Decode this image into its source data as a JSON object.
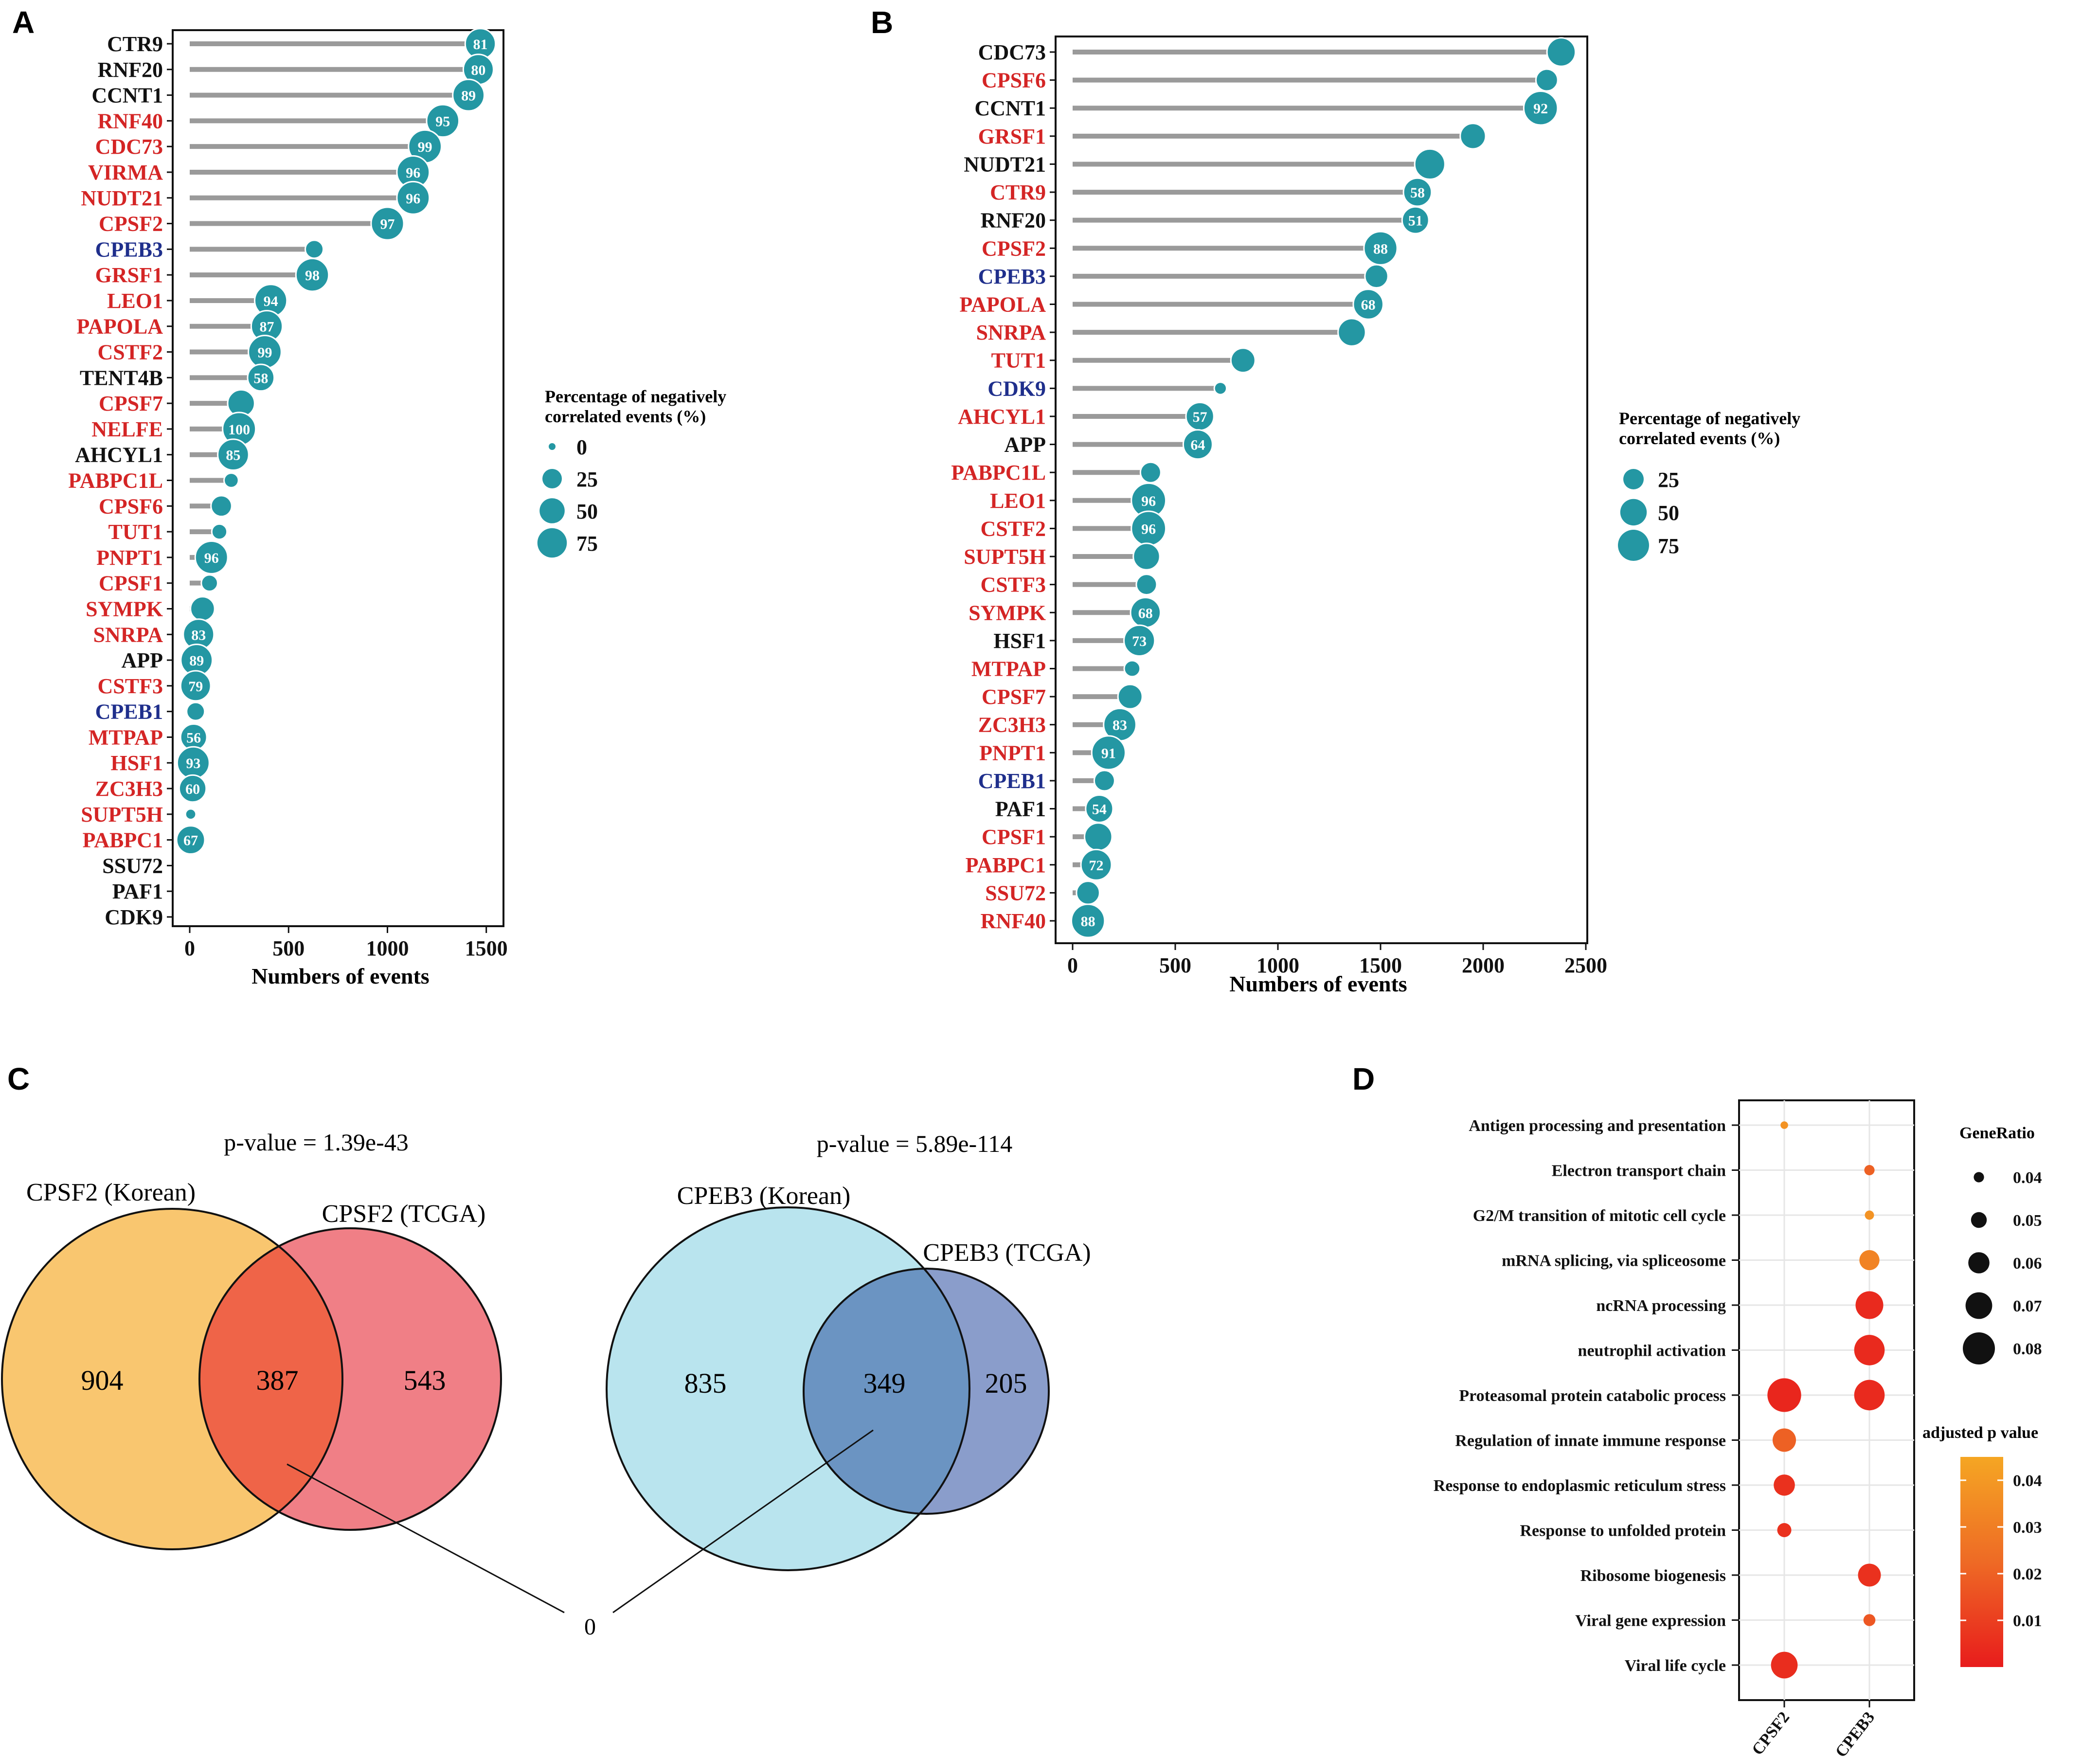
{
  "colors": {
    "red": "#d42525",
    "blue": "#1f2f8c",
    "black": "#111111",
    "teal": "#2497a3",
    "stem": "#9a9a9a",
    "venn_orange": "#f9c66f",
    "venn_pink": "#f07f86",
    "venn_overlap_red": "#ef6448",
    "venn_light_blue": "#b9e4ee",
    "venn_mid_blue": "#8a9dcb",
    "venn_overlap_blue": "#6b94c2",
    "grad_top": "#f5a623",
    "grad_mid": "#ee6a25",
    "grad_bottom": "#e81c1c"
  },
  "chart_data": [
    {
      "panel": "A",
      "type": "lollipop",
      "xlabel": "Numbers of events",
      "xlim": [
        0,
        1550
      ],
      "xticks": [
        0,
        500,
        1000,
        1500
      ],
      "legend_title": "Percentage of negatively correlated events (%)",
      "legend_title_lines": [
        "Percentage of negatively",
        "correlated events (%)"
      ],
      "legend_labels": [
        "0",
        "25",
        "50",
        "75"
      ],
      "legend_values": [
        0,
        25,
        50,
        75
      ],
      "genes": [
        {
          "name": "CTR9",
          "color": "black",
          "value": 1470,
          "pct": 81,
          "label": "81"
        },
        {
          "name": "RNF20",
          "color": "black",
          "value": 1460,
          "pct": 80,
          "label": "80"
        },
        {
          "name": "CCNT1",
          "color": "black",
          "value": 1410,
          "pct": 89,
          "label": "89"
        },
        {
          "name": "RNF40",
          "color": "red",
          "value": 1280,
          "pct": 95,
          "label": "95"
        },
        {
          "name": "CDC73",
          "color": "red",
          "value": 1190,
          "pct": 99,
          "label": "99"
        },
        {
          "name": "VIRMA",
          "color": "red",
          "value": 1130,
          "pct": 96,
          "label": "96"
        },
        {
          "name": "NUDT21",
          "color": "red",
          "value": 1130,
          "pct": 96,
          "label": "96"
        },
        {
          "name": "CPSF2",
          "color": "red",
          "value": 1000,
          "pct": 97,
          "label": "97"
        },
        {
          "name": "CPEB3",
          "color": "blue",
          "value": 630,
          "pct": 20,
          "label": ""
        },
        {
          "name": "GRSF1",
          "color": "red",
          "value": 620,
          "pct": 98,
          "label": "98"
        },
        {
          "name": "LEO1",
          "color": "red",
          "value": 410,
          "pct": 94,
          "label": "94"
        },
        {
          "name": "PAPOLA",
          "color": "red",
          "value": 390,
          "pct": 87,
          "label": "87"
        },
        {
          "name": "CSTF2",
          "color": "red",
          "value": 380,
          "pct": 99,
          "label": "99"
        },
        {
          "name": "TENT4B",
          "color": "black",
          "value": 360,
          "pct": 58,
          "label": "58"
        },
        {
          "name": "CPSF7",
          "color": "red",
          "value": 260,
          "pct": 60,
          "label": ""
        },
        {
          "name": "NELFE",
          "color": "red",
          "value": 250,
          "pct": 100,
          "label": "100"
        },
        {
          "name": "AHCYL1",
          "color": "black",
          "value": 220,
          "pct": 85,
          "label": "85"
        },
        {
          "name": "PABPC1L",
          "color": "red",
          "value": 210,
          "pct": 10,
          "label": ""
        },
        {
          "name": "CPSF6",
          "color": "red",
          "value": 160,
          "pct": 30,
          "label": ""
        },
        {
          "name": "TUT1",
          "color": "red",
          "value": 150,
          "pct": 12,
          "label": ""
        },
        {
          "name": "PNPT1",
          "color": "red",
          "value": 110,
          "pct": 96,
          "label": "96"
        },
        {
          "name": "CPSF1",
          "color": "red",
          "value": 100,
          "pct": 15,
          "label": ""
        },
        {
          "name": "SYMPK",
          "color": "red",
          "value": 65,
          "pct": 45,
          "label": ""
        },
        {
          "name": "SNRPA",
          "color": "red",
          "value": 45,
          "pct": 83,
          "label": "83"
        },
        {
          "name": "APP",
          "color": "black",
          "value": 35,
          "pct": 89,
          "label": "89"
        },
        {
          "name": "CSTF3",
          "color": "red",
          "value": 30,
          "pct": 79,
          "label": "79"
        },
        {
          "name": "CPEB1",
          "color": "blue",
          "value": 30,
          "pct": 20,
          "label": ""
        },
        {
          "name": "MTPAP",
          "color": "red",
          "value": 20,
          "pct": 56,
          "label": "56"
        },
        {
          "name": "HSF1",
          "color": "red",
          "value": 18,
          "pct": 93,
          "label": "93"
        },
        {
          "name": "ZC3H3",
          "color": "red",
          "value": 15,
          "pct": 60,
          "label": "60"
        },
        {
          "name": "SUPT5H",
          "color": "red",
          "value": 5,
          "pct": 3,
          "label": ""
        },
        {
          "name": "PABPC1",
          "color": "red",
          "value": 5,
          "pct": 67,
          "label": "67"
        },
        {
          "name": "SSU72",
          "color": "black",
          "value": 0,
          "pct": null,
          "label": ""
        },
        {
          "name": "PAF1",
          "color": "black",
          "value": 0,
          "pct": null,
          "label": ""
        },
        {
          "name": "CDK9",
          "color": "black",
          "value": 0,
          "pct": null,
          "label": ""
        }
      ]
    },
    {
      "panel": "B",
      "type": "lollipop",
      "xlabel": "Numbers of events",
      "xlim": [
        0,
        2500
      ],
      "xticks": [
        0,
        500,
        1000,
        1500,
        2000,
        2500
      ],
      "legend_title": "Percentage of negatively correlated events (%)",
      "legend_title_lines": [
        "Percentage of negatively",
        "correlated events (%)"
      ],
      "legend_labels": [
        "25",
        "50",
        "75"
      ],
      "legend_values": [
        25,
        50,
        75
      ],
      "genes": [
        {
          "name": "CDC73",
          "color": "black",
          "value": 2380,
          "pct": 60,
          "label": ""
        },
        {
          "name": "CPSF6",
          "color": "red",
          "value": 2310,
          "pct": 30,
          "label": ""
        },
        {
          "name": "CCNT1",
          "color": "black",
          "value": 2280,
          "pct": 92,
          "label": "92"
        },
        {
          "name": "GRSF1",
          "color": "red",
          "value": 1950,
          "pct": 45,
          "label": ""
        },
        {
          "name": "NUDT21",
          "color": "black",
          "value": 1740,
          "pct": 70,
          "label": ""
        },
        {
          "name": "CTR9",
          "color": "red",
          "value": 1680,
          "pct": 58,
          "label": "58"
        },
        {
          "name": "RNF20",
          "color": "black",
          "value": 1670,
          "pct": 51,
          "label": "51"
        },
        {
          "name": "CPSF2",
          "color": "red",
          "value": 1500,
          "pct": 88,
          "label": "88"
        },
        {
          "name": "CPEB3",
          "color": "blue",
          "value": 1480,
          "pct": 35,
          "label": ""
        },
        {
          "name": "PAPOLA",
          "color": "red",
          "value": 1440,
          "pct": 68,
          "label": "68"
        },
        {
          "name": "SNRPA",
          "color": "red",
          "value": 1360,
          "pct": 55,
          "label": ""
        },
        {
          "name": "TUT1",
          "color": "red",
          "value": 830,
          "pct": 40,
          "label": ""
        },
        {
          "name": "CDK9",
          "color": "blue",
          "value": 720,
          "pct": 5,
          "label": ""
        },
        {
          "name": "AHCYL1",
          "color": "red",
          "value": 620,
          "pct": 57,
          "label": "57"
        },
        {
          "name": "APP",
          "color": "black",
          "value": 610,
          "pct": 64,
          "label": "64"
        },
        {
          "name": "PABPC1L",
          "color": "red",
          "value": 380,
          "pct": 25,
          "label": ""
        },
        {
          "name": "LEO1",
          "color": "red",
          "value": 370,
          "pct": 96,
          "label": "96"
        },
        {
          "name": "CSTF2",
          "color": "red",
          "value": 370,
          "pct": 96,
          "label": "96"
        },
        {
          "name": "SUPT5H",
          "color": "red",
          "value": 360,
          "pct": 50,
          "label": ""
        },
        {
          "name": "CSTF3",
          "color": "red",
          "value": 360,
          "pct": 25,
          "label": ""
        },
        {
          "name": "SYMPK",
          "color": "red",
          "value": 355,
          "pct": 68,
          "label": "68"
        },
        {
          "name": "HSF1",
          "color": "black",
          "value": 325,
          "pct": 73,
          "label": "73"
        },
        {
          "name": "MTPAP",
          "color": "red",
          "value": 290,
          "pct": 12,
          "label": ""
        },
        {
          "name": "CPSF7",
          "color": "red",
          "value": 280,
          "pct": 40,
          "label": ""
        },
        {
          "name": "ZC3H3",
          "color": "red",
          "value": 230,
          "pct": 83,
          "label": "83"
        },
        {
          "name": "PNPT1",
          "color": "red",
          "value": 175,
          "pct": 91,
          "label": "91"
        },
        {
          "name": "CPEB1",
          "color": "blue",
          "value": 155,
          "pct": 25,
          "label": ""
        },
        {
          "name": "PAF1",
          "color": "black",
          "value": 130,
          "pct": 54,
          "label": "54"
        },
        {
          "name": "CPSF1",
          "color": "red",
          "value": 125,
          "pct": 55,
          "label": ""
        },
        {
          "name": "PABPC1",
          "color": "red",
          "value": 115,
          "pct": 72,
          "label": "72"
        },
        {
          "name": "SSU72",
          "color": "red",
          "value": 75,
          "pct": 35,
          "label": ""
        },
        {
          "name": "RNF40",
          "color": "red",
          "value": 75,
          "pct": 88,
          "label": "88"
        }
      ]
    },
    {
      "panel": "C",
      "type": "venn",
      "sets": [
        {
          "title": "CPSF2 (Korean) vs CPSF2 (TCGA)",
          "left_label": "CPSF2 (Korean)",
          "right_label": "CPSF2 (TCGA)",
          "p_value": "p-value = 1.39e-43",
          "left_only": "904",
          "overlap": "387",
          "right_only": "543"
        },
        {
          "title": "CPEB3 (Korean) vs CPEB3 (TCGA)",
          "left_label": "CPEB3 (Korean)",
          "right_label": "CPEB3 (TCGA)",
          "p_value": "p-value = 5.89e-114",
          "left_only": "835",
          "overlap": "349",
          "right_only": "205"
        }
      ],
      "shared_between_overlaps": "0"
    },
    {
      "panel": "D",
      "type": "dotplot",
      "x_categories": [
        "CPSF2",
        "CPEB3"
      ],
      "y_categories": [
        "Antigen processing and presentation",
        "Electron transport chain",
        "G2/M transition of mitotic cell cycle",
        "mRNA splicing, via spliceosome",
        "ncRNA processing",
        "neutrophil activation",
        "Proteasomal protein catabolic process",
        "Regulation of innate immune response",
        "Response to endoplasmic reticulum stress",
        "Response to unfolded protein",
        "Ribosome biogenesis",
        "Viral gene expression",
        "Viral life cycle"
      ],
      "size_legend_title": "GeneRatio",
      "size_legend": [
        0.04,
        0.05,
        0.06,
        0.07,
        0.08
      ],
      "size_legend_labels": [
        "0.04",
        "0.05",
        "0.06",
        "0.07",
        "0.08"
      ],
      "color_legend_title": "adjusted p value",
      "color_range": [
        0,
        0.045
      ],
      "color_ticks": [
        0.04,
        0.03,
        0.02,
        0.01
      ],
      "color_tick_labels": [
        "0.04",
        "0.03",
        "0.02",
        "0.01"
      ],
      "points": [
        {
          "x": "CPSF2",
          "y": "Antigen processing and presentation",
          "gene_ratio": 0.035,
          "p_adj": 0.038
        },
        {
          "x": "CPEB3",
          "y": "Electron transport chain",
          "gene_ratio": 0.04,
          "p_adj": 0.02
        },
        {
          "x": "CPEB3",
          "y": "G2/M transition of mitotic cell cycle",
          "gene_ratio": 0.038,
          "p_adj": 0.038
        },
        {
          "x": "CPEB3",
          "y": "mRNA splicing, via spliceosome",
          "gene_ratio": 0.058,
          "p_adj": 0.032
        },
        {
          "x": "CPEB3",
          "y": "ncRNA processing",
          "gene_ratio": 0.072,
          "p_adj": 0.004
        },
        {
          "x": "CPEB3",
          "y": "neutrophil activation",
          "gene_ratio": 0.077,
          "p_adj": 0.004
        },
        {
          "x": "CPSF2",
          "y": "Proteasomal protein catabolic process",
          "gene_ratio": 0.083,
          "p_adj": 0.003
        },
        {
          "x": "CPEB3",
          "y": "Proteasomal protein catabolic process",
          "gene_ratio": 0.077,
          "p_adj": 0.004
        },
        {
          "x": "CPSF2",
          "y": "Regulation of innate immune response",
          "gene_ratio": 0.064,
          "p_adj": 0.02
        },
        {
          "x": "CPSF2",
          "y": "Response to endoplasmic reticulum stress",
          "gene_ratio": 0.06,
          "p_adj": 0.006
        },
        {
          "x": "CPSF2",
          "y": "Response to unfolded protein",
          "gene_ratio": 0.047,
          "p_adj": 0.006
        },
        {
          "x": "CPEB3",
          "y": "Ribosome biogenesis",
          "gene_ratio": 0.063,
          "p_adj": 0.006
        },
        {
          "x": "CPEB3",
          "y": "Viral gene expression",
          "gene_ratio": 0.043,
          "p_adj": 0.017
        },
        {
          "x": "CPSF2",
          "y": "Viral life cycle",
          "gene_ratio": 0.07,
          "p_adj": 0.005
        }
      ]
    }
  ],
  "panel_letters": [
    "A",
    "B",
    "C",
    "D"
  ]
}
